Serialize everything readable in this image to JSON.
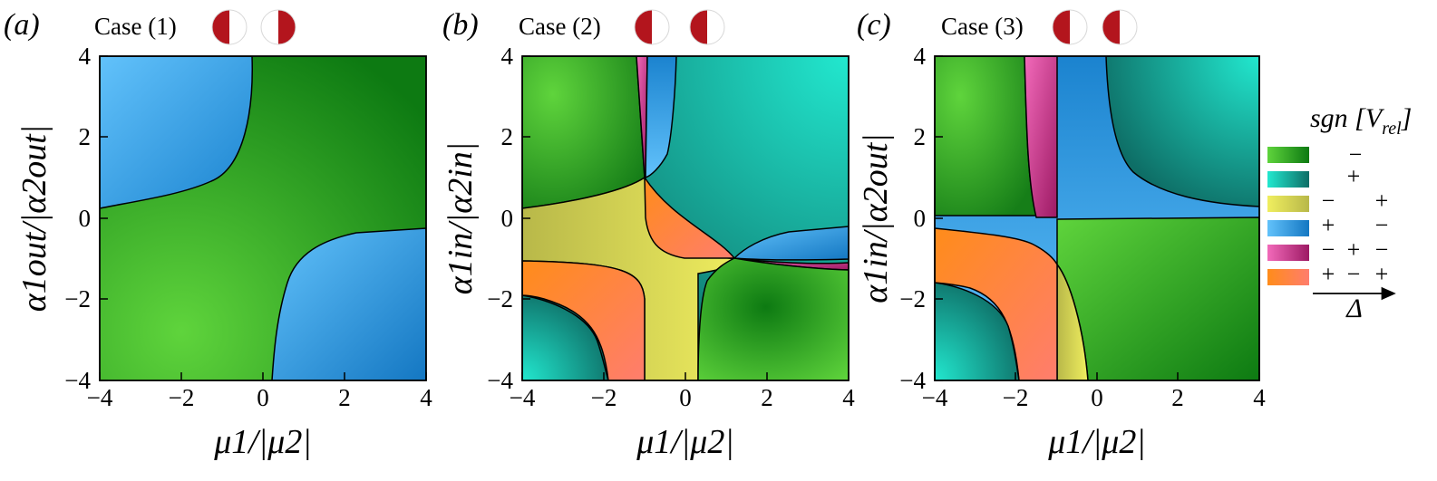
{
  "colors": {
    "green_dark": "#0d7a12",
    "green_light": "#5fd43c",
    "teal_dark": "#0e6e66",
    "teal_light": "#22e8cf",
    "yellow_dark": "#b8b849",
    "yellow_light": "#f0ee5f",
    "blue_dark": "#1477c2",
    "blue_light": "#62c2fb",
    "magenta_dark": "#9d1a64",
    "magenta_light": "#f26aba",
    "orange_dark": "#ff8c1a",
    "orange_light": "#ff7d6d",
    "disc_red": "#b3151d"
  },
  "chart_data": [
    {
      "type": "heatmap",
      "panel_label": "(a)",
      "case_label": "Case (1)",
      "xlabel": "μ1/|μ2|",
      "ylabel": "α1out/|α2out|",
      "xlim": [
        -4,
        4
      ],
      "ylim": [
        -4,
        4
      ],
      "x_ticks": [
        "−4",
        "−2",
        "0",
        "2",
        "4"
      ],
      "y_ticks": [
        "4",
        "2",
        "0",
        "−2",
        "−4"
      ],
      "regions": [
        "green",
        "blue"
      ]
    },
    {
      "type": "heatmap",
      "panel_label": "(b)",
      "case_label": "Case (2)",
      "xlabel": "μ1/|μ2|",
      "ylabel": "α1in/|α2in|",
      "xlim": [
        -4,
        4
      ],
      "ylim": [
        -4,
        4
      ],
      "x_ticks": [
        "−4",
        "−2",
        "0",
        "2",
        "4"
      ],
      "y_ticks": [
        "4",
        "2",
        "0",
        "−2",
        "−4"
      ],
      "regions": [
        "green",
        "teal",
        "yellow",
        "blue",
        "magenta",
        "orange"
      ]
    },
    {
      "type": "heatmap",
      "panel_label": "(c)",
      "case_label": "Case (3)",
      "xlabel": "μ1/|μ2|",
      "ylabel": "α1in/|α2out|",
      "xlim": [
        -4,
        4
      ],
      "ylim": [
        -4,
        4
      ],
      "x_ticks": [
        "−4",
        "−2",
        "0",
        "2",
        "4"
      ],
      "y_ticks": [
        "4",
        "2",
        "0",
        "−2",
        "−4"
      ],
      "regions": [
        "green",
        "teal",
        "blue",
        "magenta",
        "orange",
        "yellow"
      ]
    }
  ],
  "legend": {
    "title": "sgn [V",
    "title_sub": "rel",
    "title_close": "]",
    "axis_label": "Δ",
    "rows": [
      {
        "color": "green",
        "signs": [
          "",
          "−",
          "",
          ""
        ]
      },
      {
        "color": "teal",
        "signs": [
          "",
          "",
          "+",
          ""
        ]
      },
      {
        "color": "yellow",
        "signs": [
          "−",
          "",
          "",
          "+"
        ]
      },
      {
        "color": "blue",
        "signs": [
          "+",
          "",
          "",
          "−"
        ]
      },
      {
        "color": "magenta",
        "signs": [
          "−",
          "",
          "+",
          "−"
        ]
      },
      {
        "color": "orange",
        "signs": [
          "+",
          "",
          "−",
          "+"
        ]
      }
    ]
  }
}
